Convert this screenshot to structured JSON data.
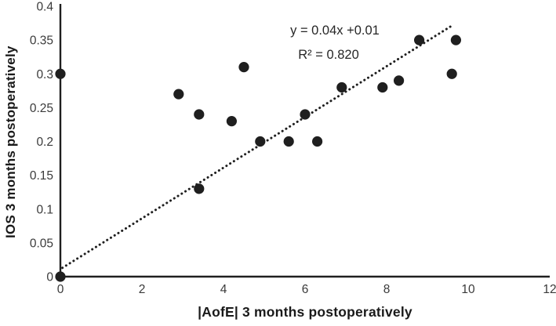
{
  "chart_data": {
    "type": "scatter",
    "title": "",
    "xlabel": "|AofE| 3 months postoperatively",
    "ylabel": "IOS 3 months postoperatively",
    "xlim": [
      0,
      12
    ],
    "ylim": [
      0,
      0.4
    ],
    "x_ticks": [
      0,
      2,
      4,
      6,
      8,
      10,
      12
    ],
    "x_tick_labels": [
      "0",
      "2",
      "4",
      "6",
      "8",
      "10",
      "12"
    ],
    "y_ticks": [
      0,
      0.05,
      0.1,
      0.15,
      0.2,
      0.25,
      0.3,
      0.35,
      0.4
    ],
    "y_tick_labels": [
      "0",
      "0.05",
      "0.1",
      "0.15",
      "0.2",
      "0.25",
      "0.3",
      "0.35",
      "0.4"
    ],
    "grid": false,
    "legend": false,
    "points": [
      [
        0,
        0
      ],
      [
        0,
        0.3
      ],
      [
        2.9,
        0.27
      ],
      [
        3.4,
        0.24
      ],
      [
        3.4,
        0.13
      ],
      [
        4.2,
        0.23
      ],
      [
        4.5,
        0.31
      ],
      [
        4.9,
        0.2
      ],
      [
        5.6,
        0.2
      ],
      [
        6.0,
        0.24
      ],
      [
        6.3,
        0.2
      ],
      [
        6.9,
        0.28
      ],
      [
        7.9,
        0.28
      ],
      [
        8.3,
        0.29
      ],
      [
        8.8,
        0.35
      ],
      [
        9.6,
        0.3
      ],
      [
        9.7,
        0.35
      ]
    ],
    "trendline": {
      "style": "dotted",
      "slope": 0.04,
      "intercept": 0.01,
      "x_start": 0.05,
      "y_start": 0.013,
      "x_end": 9.62,
      "y_end": 0.372
    },
    "annotation": {
      "equation": "y = 0.04x +0.01",
      "r_squared": "R² = 0.820"
    },
    "colors": {
      "marker": "#1f1f1f",
      "axis": "#1f1f1f",
      "tick_label": "#3a3a3a",
      "background": "#ffffff"
    }
  }
}
